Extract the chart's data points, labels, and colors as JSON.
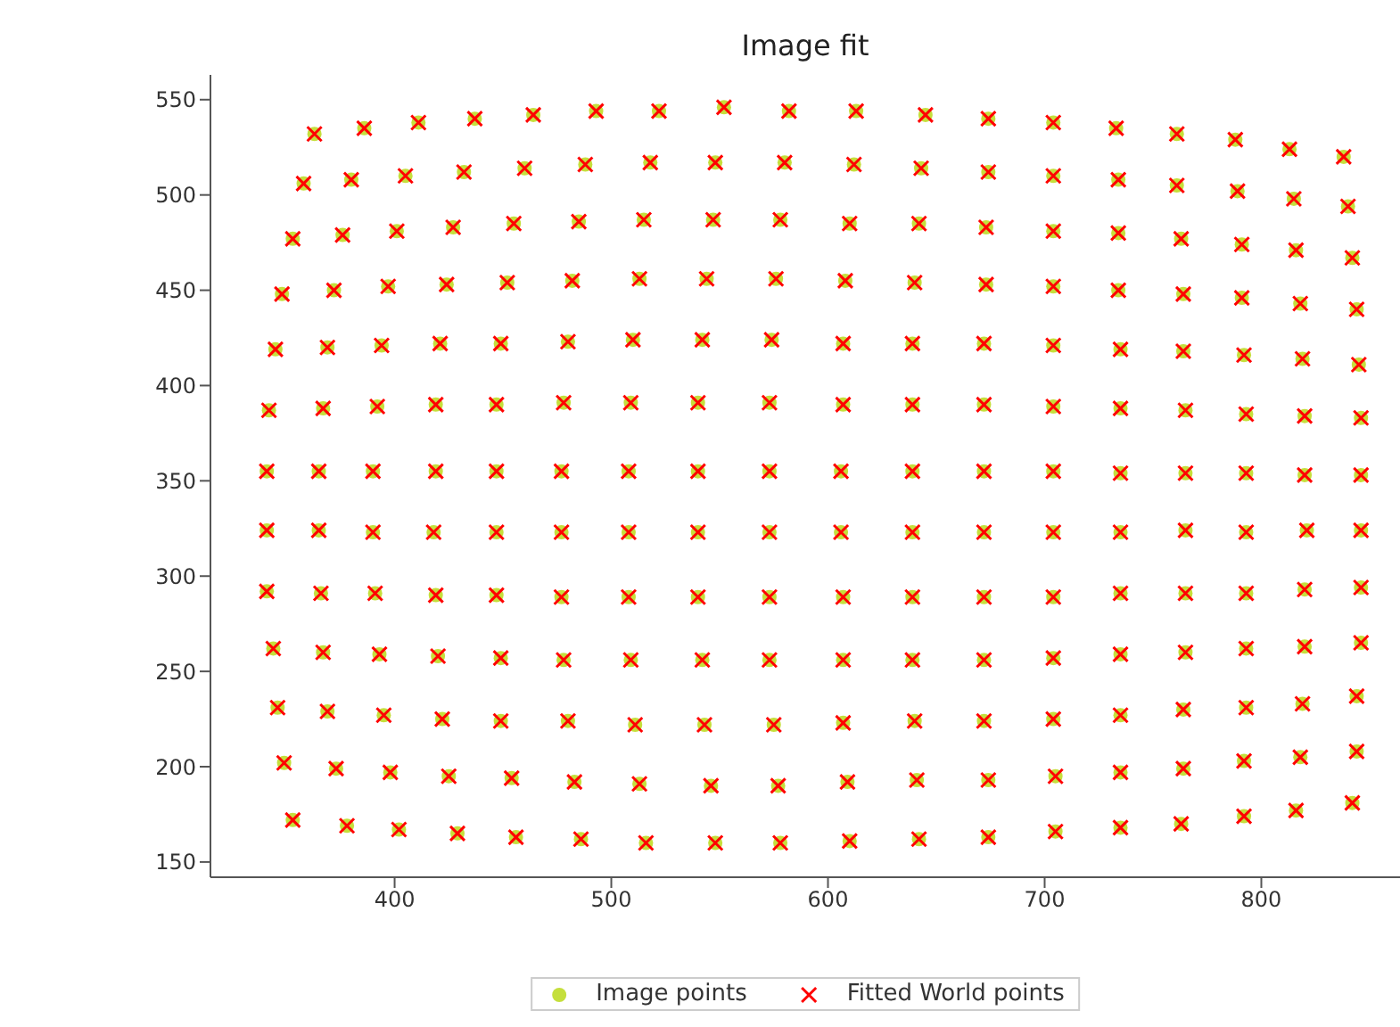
{
  "chart_data": {
    "type": "scatter",
    "title": "Image fit",
    "xlim": [
      315,
      864
    ],
    "ylim": [
      142,
      563
    ],
    "xticks": [
      400,
      500,
      600,
      700,
      800
    ],
    "yticks": [
      150,
      200,
      250,
      300,
      350,
      400,
      450,
      500,
      550
    ],
    "grid": false,
    "legend": "bottom",
    "x": [
      363,
      386,
      411,
      437,
      464,
      493,
      522,
      552,
      582,
      613,
      645,
      674,
      704,
      733,
      761,
      788,
      813,
      838,
      358,
      380,
      405,
      432,
      460,
      488,
      518,
      548,
      580,
      612,
      643,
      674,
      704,
      734,
      761,
      789,
      815,
      840,
      353,
      376,
      401,
      427,
      455,
      485,
      515,
      547,
      578,
      610,
      642,
      673,
      704,
      734,
      763,
      791,
      816,
      842,
      348,
      372,
      397,
      424,
      452,
      482,
      513,
      544,
      576,
      608,
      640,
      673,
      704,
      734,
      764,
      791,
      818,
      844,
      345,
      369,
      394,
      421,
      449,
      480,
      510,
      542,
      574,
      607,
      639,
      672,
      704,
      735,
      764,
      792,
      819,
      845,
      342,
      367,
      392,
      419,
      447,
      478,
      509,
      540,
      573,
      607,
      639,
      672,
      704,
      735,
      765,
      793,
      820,
      846,
      341,
      365,
      390,
      419,
      447,
      477,
      508,
      540,
      573,
      606,
      639,
      672,
      704,
      735,
      765,
      793,
      820,
      846,
      341,
      365,
      390,
      418,
      447,
      477,
      508,
      540,
      573,
      606,
      639,
      672,
      704,
      735,
      765,
      793,
      821,
      846,
      341,
      366,
      391,
      419,
      447,
      477,
      508,
      540,
      573,
      607,
      639,
      672,
      704,
      735,
      765,
      793,
      820,
      846,
      344,
      367,
      393,
      420,
      449,
      478,
      509,
      542,
      573,
      607,
      639,
      672,
      704,
      735,
      765,
      793,
      820,
      846,
      346,
      369,
      395,
      422,
      449,
      480,
      511,
      543,
      575,
      607,
      640,
      672,
      704,
      735,
      764,
      793,
      819,
      844,
      349,
      373,
      398,
      425,
      454,
      483,
      513,
      546,
      577,
      609,
      641,
      674,
      705,
      735,
      764,
      792,
      818,
      844,
      353,
      378,
      402,
      429,
      456,
      486,
      516,
      548,
      578,
      610,
      642,
      674,
      705,
      735,
      763,
      792,
      816,
      842
    ],
    "series": [
      {
        "name": "Image points",
        "color": "#c5df3c",
        "marker": "circle",
        "values": [
          532,
          535,
          538,
          540,
          542,
          544,
          544,
          546,
          544,
          544,
          542,
          540,
          538,
          535,
          532,
          529,
          524,
          520,
          506,
          508,
          510,
          512,
          514,
          516,
          517,
          517,
          517,
          516,
          514,
          512,
          510,
          508,
          505,
          502,
          498,
          494,
          477,
          479,
          481,
          483,
          485,
          486,
          487,
          487,
          487,
          485,
          485,
          483,
          481,
          480,
          477,
          474,
          471,
          467,
          448,
          450,
          452,
          453,
          454,
          455,
          456,
          456,
          456,
          455,
          454,
          453,
          452,
          450,
          448,
          446,
          443,
          440,
          419,
          420,
          421,
          422,
          422,
          423,
          424,
          424,
          424,
          422,
          422,
          422,
          421,
          419,
          418,
          416,
          414,
          411,
          387,
          388,
          389,
          390,
          390,
          391,
          391,
          391,
          391,
          390,
          390,
          390,
          389,
          388,
          387,
          385,
          384,
          383,
          355,
          355,
          355,
          355,
          355,
          355,
          355,
          355,
          355,
          355,
          355,
          355,
          355,
          354,
          354,
          354,
          353,
          353,
          324,
          324,
          323,
          323,
          323,
          323,
          323,
          323,
          323,
          323,
          323,
          323,
          323,
          323,
          324,
          323,
          324,
          324,
          292,
          291,
          291,
          290,
          290,
          289,
          289,
          289,
          289,
          289,
          289,
          289,
          289,
          291,
          291,
          291,
          293,
          294,
          262,
          260,
          259,
          258,
          257,
          256,
          256,
          256,
          256,
          256,
          256,
          256,
          257,
          259,
          260,
          262,
          263,
          265,
          231,
          229,
          227,
          225,
          224,
          224,
          222,
          222,
          222,
          223,
          224,
          224,
          225,
          227,
          230,
          231,
          233,
          237,
          202,
          199,
          197,
          195,
          194,
          192,
          191,
          190,
          190,
          192,
          193,
          193,
          195,
          197,
          199,
          203,
          205,
          208,
          172,
          169,
          167,
          165,
          163,
          162,
          160,
          160,
          160,
          161,
          162,
          163,
          166,
          168,
          170,
          174,
          177,
          181
        ]
      },
      {
        "name": "Fitted World points",
        "color": "#ff0000",
        "marker": "cross",
        "values": [
          532,
          535,
          538,
          540,
          542,
          544,
          544,
          546,
          544,
          544,
          542,
          540,
          538,
          535,
          532,
          529,
          524,
          520,
          506,
          508,
          510,
          512,
          514,
          516,
          517,
          517,
          517,
          516,
          514,
          512,
          510,
          508,
          505,
          502,
          498,
          494,
          477,
          479,
          481,
          483,
          485,
          486,
          487,
          487,
          487,
          485,
          485,
          483,
          481,
          480,
          477,
          474,
          471,
          467,
          448,
          450,
          452,
          453,
          454,
          455,
          456,
          456,
          456,
          455,
          454,
          453,
          452,
          450,
          448,
          446,
          443,
          440,
          419,
          420,
          421,
          422,
          422,
          423,
          424,
          424,
          424,
          422,
          422,
          422,
          421,
          419,
          418,
          416,
          414,
          411,
          387,
          388,
          389,
          390,
          390,
          391,
          391,
          391,
          391,
          390,
          390,
          390,
          389,
          388,
          387,
          385,
          384,
          383,
          355,
          355,
          355,
          355,
          355,
          355,
          355,
          355,
          355,
          355,
          355,
          355,
          355,
          354,
          354,
          354,
          353,
          353,
          324,
          324,
          323,
          323,
          323,
          323,
          323,
          323,
          323,
          323,
          323,
          323,
          323,
          323,
          324,
          323,
          324,
          324,
          292,
          291,
          291,
          290,
          290,
          289,
          289,
          289,
          289,
          289,
          289,
          289,
          289,
          291,
          291,
          291,
          293,
          294,
          262,
          260,
          259,
          258,
          257,
          256,
          256,
          256,
          256,
          256,
          256,
          256,
          257,
          259,
          260,
          262,
          263,
          265,
          231,
          229,
          227,
          225,
          224,
          224,
          222,
          222,
          222,
          223,
          224,
          224,
          225,
          227,
          230,
          231,
          233,
          237,
          202,
          199,
          197,
          195,
          194,
          192,
          191,
          190,
          190,
          192,
          193,
          193,
          195,
          197,
          199,
          203,
          205,
          208,
          172,
          169,
          167,
          165,
          163,
          162,
          160,
          160,
          160,
          161,
          162,
          163,
          166,
          168,
          170,
          174,
          177,
          181
        ]
      }
    ]
  }
}
